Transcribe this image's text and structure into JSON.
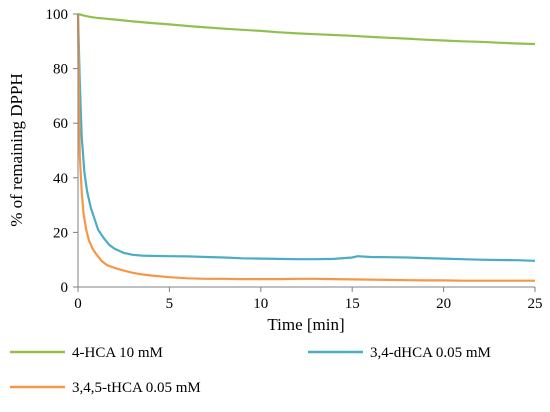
{
  "chart_data": {
    "type": "line",
    "title": "",
    "xlabel": "Time [min]",
    "ylabel": "% of remaining DPPH",
    "xlim": [
      0,
      25
    ],
    "ylim": [
      0,
      100
    ],
    "xticks": [
      0,
      5,
      10,
      15,
      20,
      25
    ],
    "yticks": [
      0,
      20,
      40,
      60,
      80,
      100
    ],
    "grid": false,
    "legend_position": "bottom",
    "series": [
      {
        "name": "4-HCA 10 mM",
        "color": "#92c050",
        "points": [
          [
            0,
            100
          ],
          [
            0.3,
            99.5
          ],
          [
            0.6,
            99
          ],
          [
            1,
            98.6
          ],
          [
            2,
            98
          ],
          [
            3,
            97.3
          ],
          [
            4,
            96.7
          ],
          [
            5,
            96.2
          ],
          [
            6,
            95.6
          ],
          [
            7,
            95.1
          ],
          [
            8,
            94.6
          ],
          [
            9,
            94.2
          ],
          [
            10,
            93.8
          ],
          [
            11,
            93.3
          ],
          [
            12,
            92.9
          ],
          [
            13,
            92.6
          ],
          [
            14,
            92.3
          ],
          [
            15,
            92
          ],
          [
            16,
            91.6
          ],
          [
            17,
            91.3
          ],
          [
            18,
            91
          ],
          [
            19,
            90.6
          ],
          [
            20,
            90.3
          ],
          [
            21,
            90
          ],
          [
            22,
            89.8
          ],
          [
            23,
            89.5
          ],
          [
            24,
            89.2
          ],
          [
            25,
            89
          ]
        ]
      },
      {
        "name": "3,4-dHCA 0.05 mM",
        "color": "#4bacc6",
        "points": [
          [
            0,
            100
          ],
          [
            0.1,
            75
          ],
          [
            0.2,
            55
          ],
          [
            0.35,
            42
          ],
          [
            0.5,
            35
          ],
          [
            0.7,
            29
          ],
          [
            0.9,
            25
          ],
          [
            1.1,
            21
          ],
          [
            1.4,
            18
          ],
          [
            1.7,
            15.5
          ],
          [
            2,
            14
          ],
          [
            2.5,
            12.5
          ],
          [
            3,
            11.8
          ],
          [
            3.5,
            11.5
          ],
          [
            4,
            11.4
          ],
          [
            5,
            11.3
          ],
          [
            6,
            11.2
          ],
          [
            7,
            11
          ],
          [
            8,
            10.8
          ],
          [
            9,
            10.5
          ],
          [
            10,
            10.4
          ],
          [
            11,
            10.3
          ],
          [
            12,
            10.2
          ],
          [
            13,
            10.2
          ],
          [
            14,
            10.3
          ],
          [
            15,
            10.8
          ],
          [
            15.3,
            11.3
          ],
          [
            16,
            11
          ],
          [
            17,
            10.9
          ],
          [
            18,
            10.8
          ],
          [
            19,
            10.6
          ],
          [
            20,
            10.4
          ],
          [
            21,
            10.2
          ],
          [
            22,
            10
          ],
          [
            23,
            9.9
          ],
          [
            24,
            9.8
          ],
          [
            25,
            9.6
          ]
        ]
      },
      {
        "name": "3,4,5-tHCA 0.05 mM",
        "color": "#f79646",
        "points": [
          [
            0,
            100
          ],
          [
            0.05,
            70
          ],
          [
            0.1,
            48
          ],
          [
            0.2,
            35
          ],
          [
            0.3,
            27
          ],
          [
            0.45,
            21
          ],
          [
            0.6,
            17
          ],
          [
            0.8,
            14
          ],
          [
            1,
            12
          ],
          [
            1.3,
            9.5
          ],
          [
            1.6,
            8
          ],
          [
            2,
            7
          ],
          [
            2.5,
            6
          ],
          [
            3,
            5.2
          ],
          [
            3.5,
            4.6
          ],
          [
            4,
            4.2
          ],
          [
            5,
            3.6
          ],
          [
            6,
            3.2
          ],
          [
            7,
            3
          ],
          [
            8,
            3
          ],
          [
            9,
            2.9
          ],
          [
            10,
            2.9
          ],
          [
            11,
            2.9
          ],
          [
            12,
            3
          ],
          [
            13,
            3
          ],
          [
            14,
            2.9
          ],
          [
            15,
            2.8
          ],
          [
            16,
            2.7
          ],
          [
            17,
            2.6
          ],
          [
            18,
            2.5
          ],
          [
            19,
            2.4
          ],
          [
            20,
            2.4
          ],
          [
            21,
            2.3
          ],
          [
            22,
            2.3
          ],
          [
            23,
            2.3
          ],
          [
            24,
            2.3
          ],
          [
            25,
            2.3
          ]
        ]
      }
    ]
  }
}
